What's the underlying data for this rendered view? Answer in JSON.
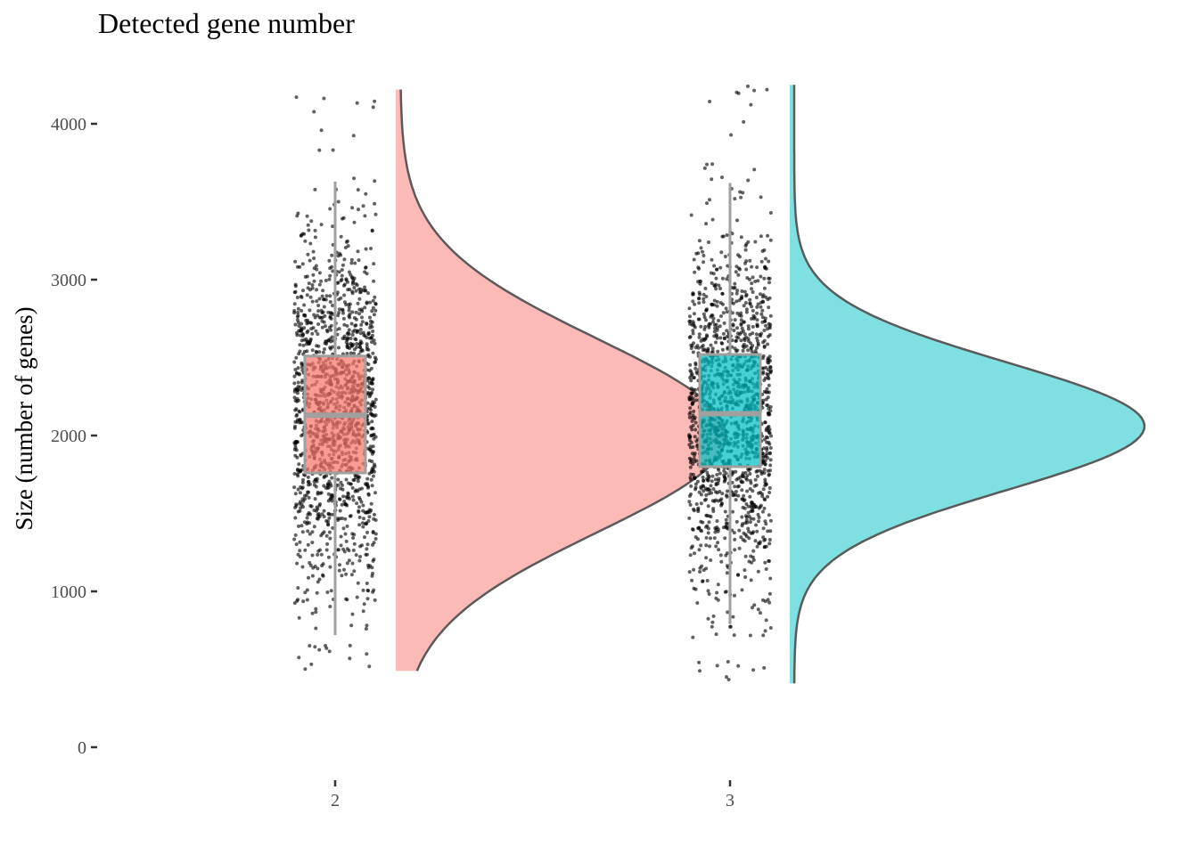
{
  "chart_data": {
    "type": "raincloud",
    "title": "Detected gene number",
    "xlabel": "",
    "ylabel": "Size (number of genes)",
    "ylim": [
      0,
      4250
    ],
    "y_ticks": [
      0,
      1000,
      2000,
      3000,
      4000
    ],
    "grid": false,
    "legend": "none",
    "categories": [
      "2",
      "3"
    ],
    "series": [
      {
        "category": "2",
        "fill_color": "#F8766D",
        "box": {
          "min": 720,
          "q1": 1760,
          "median": 2130,
          "q3": 2510,
          "max": 3630
        },
        "point_range": [
          490,
          4220
        ],
        "density": {
          "mean": 2000,
          "sd": 620,
          "range": [
            490,
            4220
          ]
        }
      },
      {
        "category": "3",
        "fill_color": "#00BFC4",
        "box": {
          "min": 790,
          "q1": 1800,
          "median": 2140,
          "q3": 2520,
          "max": 3620
        },
        "point_range": [
          410,
          4250
        ],
        "density": {
          "mean": 2060,
          "sd": 410,
          "range": [
            410,
            4250
          ]
        }
      }
    ]
  }
}
